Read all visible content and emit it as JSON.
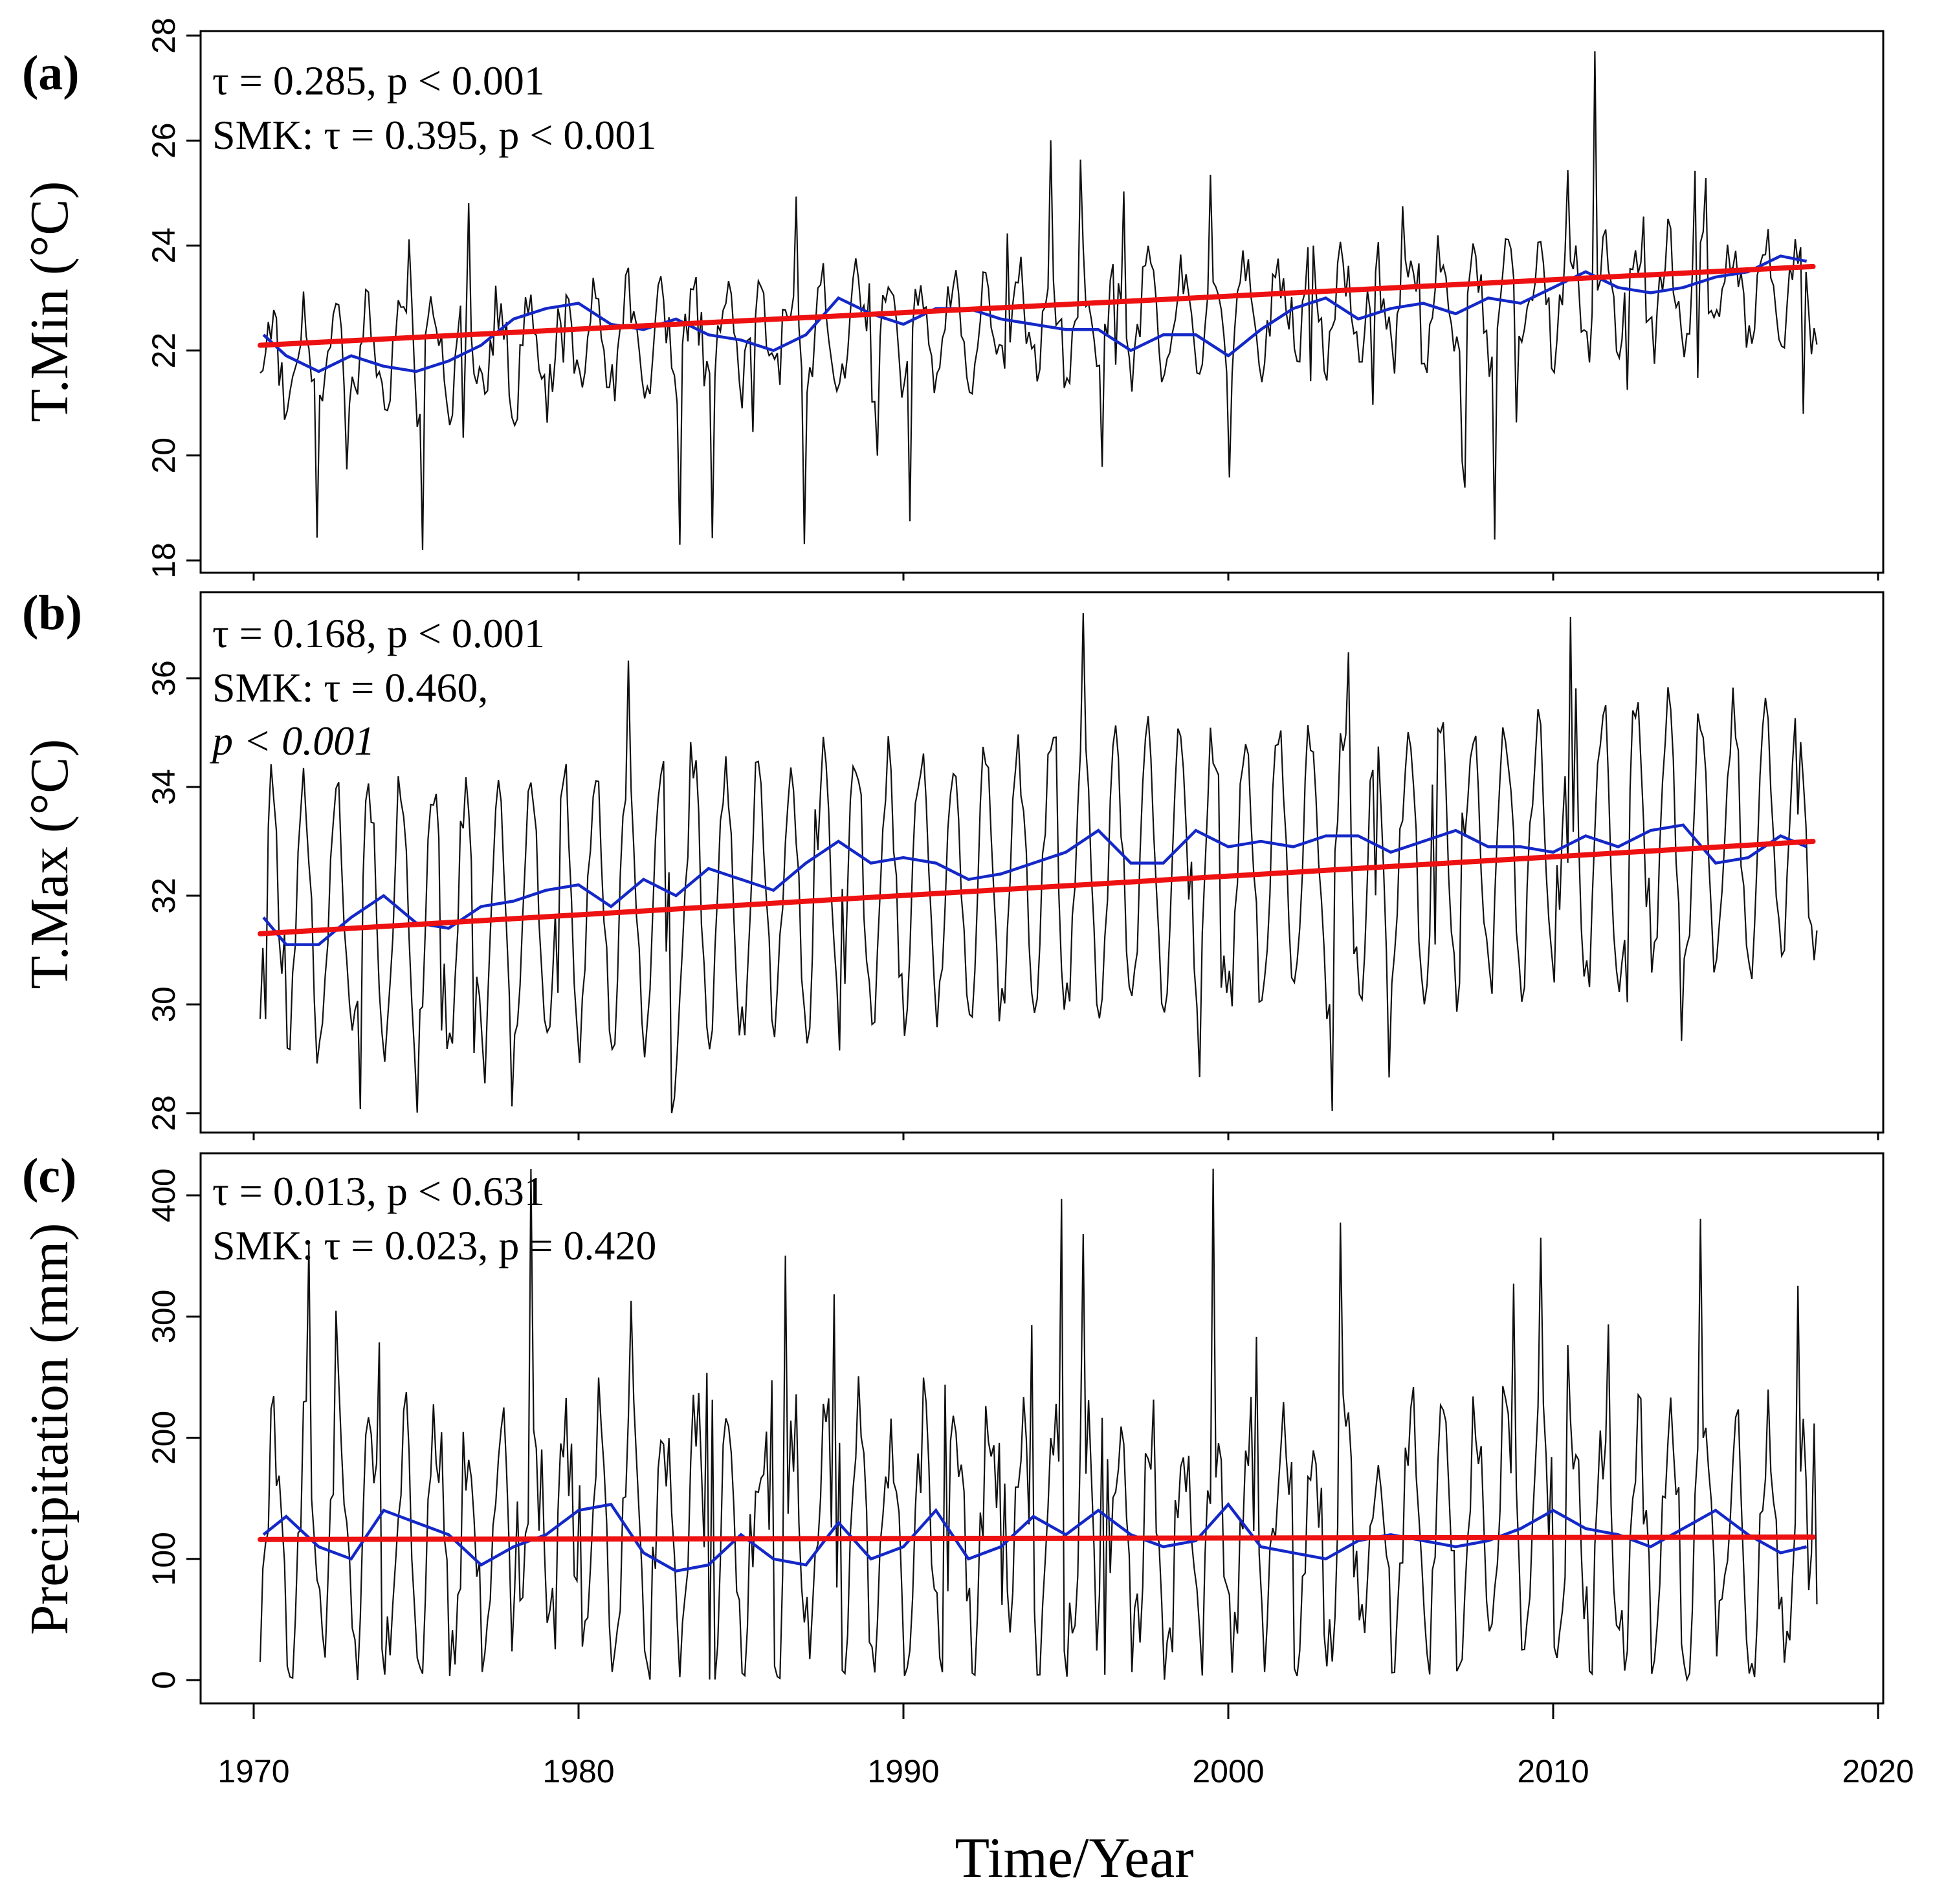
{
  "chart_data": {
    "type": "line",
    "xlabel": "Time/Year",
    "xlim": [
      1970,
      2018
    ],
    "xaxis_range": [
      1967,
      2020
    ],
    "xticks": [
      "1970",
      "1980",
      "1990",
      "2000",
      "2010",
      "2020"
    ],
    "panels": [
      {
        "id": "a",
        "label": "(a)",
        "ylabel": "T.Min (°C)",
        "ylim": [
          18,
          28
        ],
        "yticks": [
          "18",
          "20",
          "22",
          "24",
          "26",
          "28"
        ],
        "annotations": [
          "τ = 0.285, p < 0.001",
          "SMK:  τ = 0.395, p < 0.001"
        ],
        "series": [
          {
            "kind": "monthly",
            "mean": 22.5,
            "trend_per_year": 0.03,
            "amplitude": 0.9,
            "noise": 0.55,
            "min": 18.2,
            "max": 27.7,
            "color": "#111111"
          },
          {
            "kind": "moving-average",
            "color": "#1428c8",
            "x": [
              1970.3,
              1971.0,
              1972.0,
              1973.0,
              1974.0,
              1975.0,
              1976.0,
              1977.0,
              1978.0,
              1979.0,
              1980.0,
              1981.0,
              1982.0,
              1983.0,
              1984.0,
              1985.0,
              1986.0,
              1987.0,
              1988.0,
              1989.0,
              1990.0,
              1991.0,
              1992.0,
              1993.0,
              1994.0,
              1995.0,
              1996.0,
              1997.0,
              1998.0,
              1999.0,
              2000.0,
              2001.0,
              2002.0,
              2003.0,
              2004.0,
              2005.0,
              2006.0,
              2007.0,
              2008.0,
              2009.0,
              2010.0,
              2011.0,
              2012.0,
              2013.0,
              2014.0,
              2015.0,
              2016.0,
              2017.0,
              2017.8
            ],
            "y": [
              22.3,
              21.9,
              21.6,
              21.9,
              21.7,
              21.6,
              21.8,
              22.1,
              22.6,
              22.8,
              22.9,
              22.5,
              22.4,
              22.6,
              22.3,
              22.2,
              22.0,
              22.3,
              23.0,
              22.7,
              22.5,
              22.8,
              22.8,
              22.6,
              22.5,
              22.4,
              22.4,
              22.0,
              22.3,
              22.3,
              21.9,
              22.4,
              22.8,
              23.0,
              22.6,
              22.8,
              22.9,
              22.7,
              23.0,
              22.9,
              23.2,
              23.5,
              23.2,
              23.1,
              23.2,
              23.4,
              23.5,
              23.8,
              23.7
            ]
          },
          {
            "kind": "trend",
            "color": "#ee1111",
            "x": [
              1970.2,
              2018.0
            ],
            "y": [
              22.1,
              23.6
            ]
          }
        ]
      },
      {
        "id": "b",
        "label": "(b)",
        "ylabel": "T.Max (°C)",
        "ylim": [
          28,
          37
        ],
        "yticks": [
          "28",
          "30",
          "32",
          "34",
          "36"
        ],
        "annotations": [
          "τ = 0.168, p < 0.001",
          "SMK:  τ = 0.460,",
          "p < 0.001"
        ],
        "series": [
          {
            "kind": "monthly",
            "mean": 32.3,
            "trend_per_year": 0.035,
            "amplitude": 2.4,
            "noise": 0.55,
            "min": 28.0,
            "max": 37.2,
            "color": "#111111"
          },
          {
            "kind": "moving-average",
            "color": "#1428c8",
            "x": [
              1970.3,
              1971.0,
              1972.0,
              1973.0,
              1974.0,
              1975.0,
              1976.0,
              1977.0,
              1978.0,
              1979.0,
              1980.0,
              1981.0,
              1982.0,
              1983.0,
              1984.0,
              1985.0,
              1986.0,
              1987.0,
              1988.0,
              1989.0,
              1990.0,
              1991.0,
              1992.0,
              1993.0,
              1994.0,
              1995.0,
              1996.0,
              1997.0,
              1998.0,
              1999.0,
              2000.0,
              2001.0,
              2002.0,
              2003.0,
              2004.0,
              2005.0,
              2006.0,
              2007.0,
              2008.0,
              2009.0,
              2010.0,
              2011.0,
              2012.0,
              2013.0,
              2014.0,
              2015.0,
              2016.0,
              2017.0,
              2017.8
            ],
            "y": [
              31.6,
              31.1,
              31.1,
              31.6,
              32.0,
              31.5,
              31.4,
              31.8,
              31.9,
              32.1,
              32.2,
              31.8,
              32.3,
              32.0,
              32.5,
              32.3,
              32.1,
              32.6,
              33.0,
              32.6,
              32.7,
              32.6,
              32.3,
              32.4,
              32.6,
              32.8,
              33.2,
              32.6,
              32.6,
              33.2,
              32.9,
              33.0,
              32.9,
              33.1,
              33.1,
              32.8,
              33.0,
              33.2,
              32.9,
              32.9,
              32.8,
              33.1,
              32.9,
              33.2,
              33.3,
              32.6,
              32.7,
              33.1,
              32.9
            ]
          },
          {
            "kind": "trend",
            "color": "#ee1111",
            "x": [
              1970.2,
              2018.0
            ],
            "y": [
              31.3,
              33.0
            ]
          }
        ]
      },
      {
        "id": "c",
        "label": "(c)",
        "ylabel": "Precipitation (mm)",
        "ylim": [
          -10,
          430
        ],
        "yticks": [
          "0",
          "100",
          "200",
          "300",
          "400"
        ],
        "annotations": [
          "τ = 0.013, p < 0.631",
          "SMK:  τ = 0.023, p = 0.420"
        ],
        "series": [
          {
            "kind": "monthly",
            "mean": 115,
            "trend_per_year": 0.05,
            "amplitude": 95,
            "noise": 45,
            "min": 0,
            "max": 422,
            "color": "#111111"
          },
          {
            "kind": "moving-average",
            "color": "#1428c8",
            "x": [
              1970.3,
              1971.0,
              1972.0,
              1973.0,
              1974.0,
              1975.0,
              1976.0,
              1977.0,
              1978.0,
              1979.0,
              1980.0,
              1981.0,
              1982.0,
              1983.0,
              1984.0,
              1985.0,
              1986.0,
              1987.0,
              1988.0,
              1989.0,
              1990.0,
              1991.0,
              1992.0,
              1993.0,
              1994.0,
              1995.0,
              1996.0,
              1997.0,
              1998.0,
              1999.0,
              2000.0,
              2001.0,
              2002.0,
              2003.0,
              2004.0,
              2005.0,
              2006.0,
              2007.0,
              2008.0,
              2009.0,
              2010.0,
              2011.0,
              2012.0,
              2013.0,
              2014.0,
              2015.0,
              2016.0,
              2017.0,
              2017.8
            ],
            "y": [
              120,
              135,
              110,
              100,
              140,
              130,
              120,
              95,
              110,
              120,
              140,
              145,
              105,
              90,
              95,
              120,
              100,
              95,
              130,
              100,
              110,
              140,
              100,
              110,
              135,
              120,
              140,
              120,
              110,
              115,
              145,
              110,
              105,
              100,
              115,
              120,
              115,
              110,
              115,
              125,
              140,
              125,
              120,
              110,
              125,
              140,
              120,
              105,
              110
            ]
          },
          {
            "kind": "trend",
            "color": "#ee1111",
            "x": [
              1970.2,
              2018.0
            ],
            "y": [
              116,
              118
            ]
          }
        ]
      }
    ]
  }
}
